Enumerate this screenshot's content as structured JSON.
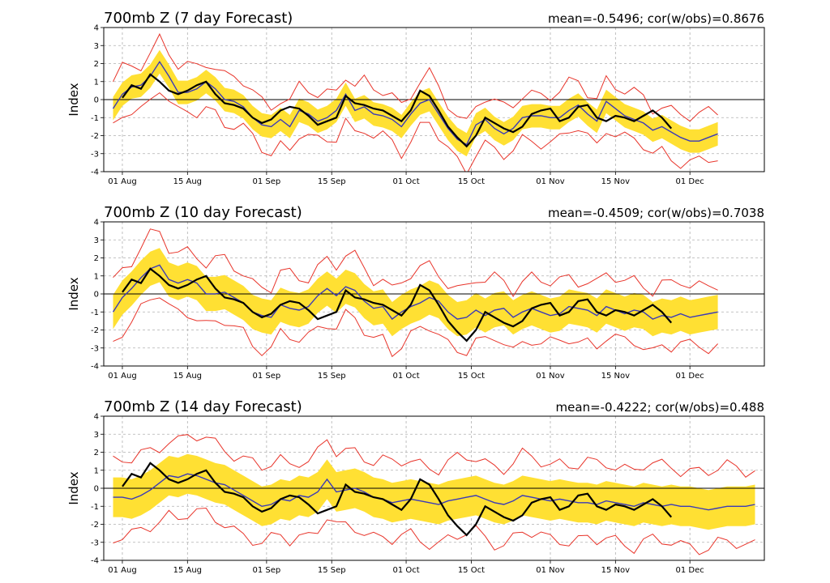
{
  "chart_data": [
    {
      "type": "line",
      "title": "700mb Z (7 day Forecast)",
      "stats": "mean=-0.5496; cor(w/obs)=0.8676",
      "ylabel": "Index",
      "ylim": [
        -4,
        4
      ],
      "yticks": [
        "-4",
        "-3",
        "-2",
        "-1",
        "0",
        "1",
        "2",
        "3",
        "4"
      ],
      "x_range_days": [
        -4,
        138
      ],
      "xticks": [
        {
          "day": 0,
          "label": "01 Aug"
        },
        {
          "day": 14,
          "label": "15 Aug"
        },
        {
          "day": 31,
          "label": "01 Sep"
        },
        {
          "day": 45,
          "label": "15 Sep"
        },
        {
          "day": 61,
          "label": "01 Oct"
        },
        {
          "day": 75,
          "label": "15 Oct"
        },
        {
          "day": 92,
          "label": "01 Nov"
        },
        {
          "day": 106,
          "label": "15 Nov"
        },
        {
          "day": 122,
          "label": "01 Dec"
        }
      ],
      "observed": {
        "x": [
          0,
          2,
          4,
          6,
          8,
          10,
          12,
          14,
          16,
          18,
          20,
          22,
          24,
          26,
          28,
          30,
          32,
          34,
          36,
          38,
          40,
          42,
          44,
          46,
          48,
          50,
          52,
          54,
          56,
          58,
          60,
          62,
          64,
          66,
          68,
          70,
          72,
          74,
          76,
          78,
          80,
          82,
          84,
          86,
          88,
          90,
          92,
          94,
          96,
          98,
          100,
          102,
          104,
          106,
          108,
          110,
          112,
          114,
          116,
          118
        ],
        "y": [
          0.1,
          0.8,
          0.6,
          1.4,
          1.0,
          0.5,
          0.3,
          0.5,
          0.8,
          1.0,
          0.3,
          -0.2,
          -0.3,
          -0.5,
          -1.0,
          -1.3,
          -1.1,
          -0.6,
          -0.4,
          -0.5,
          -0.9,
          -1.4,
          -1.2,
          -1.0,
          0.2,
          -0.2,
          -0.3,
          -0.5,
          -0.6,
          -0.9,
          -1.2,
          -0.6,
          0.5,
          0.2,
          -0.6,
          -1.5,
          -2.1,
          -2.6,
          -2.0,
          -1.0,
          -1.3,
          -1.6,
          -1.8,
          -1.5,
          -0.8,
          -0.6,
          -0.5,
          -1.2,
          -1.0,
          -0.4,
          -0.3,
          -1.0,
          -1.2,
          -0.9,
          -1.0,
          -1.2,
          -0.9,
          -0.6,
          -1.0,
          -1.6
        ]
      },
      "ensemble_mean": {
        "x": [
          -2,
          0,
          2,
          4,
          6,
          8,
          10,
          12,
          14,
          16,
          18,
          20,
          22,
          24,
          26,
          28,
          30,
          32,
          34,
          36,
          38,
          40,
          42,
          44,
          46,
          48,
          50,
          52,
          54,
          56,
          58,
          60,
          62,
          64,
          66,
          68,
          70,
          72,
          74,
          76,
          78,
          80,
          82,
          84,
          86,
          88,
          90,
          92,
          94,
          96,
          98,
          100,
          102,
          104,
          106,
          108,
          110,
          112,
          114,
          116,
          118,
          120,
          122,
          124,
          126,
          128
        ],
        "y": [
          -0.5,
          0.3,
          0.7,
          0.8,
          1.3,
          2.1,
          1.3,
          0.4,
          0.4,
          0.6,
          1.0,
          0.6,
          0.0,
          -0.1,
          -0.4,
          -1.0,
          -1.4,
          -1.5,
          -1.1,
          -1.5,
          -0.6,
          -0.8,
          -1.2,
          -1.0,
          -0.6,
          0.3,
          -0.6,
          -0.4,
          -0.8,
          -0.9,
          -1.1,
          -1.5,
          -0.8,
          -0.2,
          0.0,
          -0.8,
          -1.6,
          -2.2,
          -2.5,
          -1.4,
          -1.1,
          -1.6,
          -1.9,
          -1.6,
          -1.0,
          -0.9,
          -0.9,
          -1.0,
          -1.0,
          -0.6,
          -0.3,
          -0.8,
          -1.2,
          -0.1,
          -0.5,
          -0.9,
          -1.1,
          -1.3,
          -1.7,
          -1.5,
          -1.8,
          -2.1,
          -2.3,
          -2.3,
          -2.1,
          -1.9
        ]
      },
      "band_width": 0.65,
      "envelope_width": 1.3
    },
    {
      "type": "line",
      "title": "700mb Z (10 day Forecast)",
      "stats": "mean=-0.4509; cor(w/obs)=0.7038",
      "ylabel": "Index",
      "ylim": [
        -4,
        4
      ],
      "yticks": [
        "-4",
        "-3",
        "-2",
        "-1",
        "0",
        "1",
        "2",
        "3",
        "4"
      ],
      "x_range_days": [
        -4,
        138
      ],
      "xticks": [
        {
          "day": 0,
          "label": "01 Aug"
        },
        {
          "day": 14,
          "label": "15 Aug"
        },
        {
          "day": 31,
          "label": "01 Sep"
        },
        {
          "day": 45,
          "label": "15 Sep"
        },
        {
          "day": 61,
          "label": "01 Oct"
        },
        {
          "day": 75,
          "label": "15 Oct"
        },
        {
          "day": 92,
          "label": "01 Nov"
        },
        {
          "day": 106,
          "label": "15 Nov"
        },
        {
          "day": 122,
          "label": "01 Dec"
        }
      ],
      "observed": {
        "x": [
          0,
          2,
          4,
          6,
          8,
          10,
          12,
          14,
          16,
          18,
          20,
          22,
          24,
          26,
          28,
          30,
          32,
          34,
          36,
          38,
          40,
          42,
          44,
          46,
          48,
          50,
          52,
          54,
          56,
          58,
          60,
          62,
          64,
          66,
          68,
          70,
          72,
          74,
          76,
          78,
          80,
          82,
          84,
          86,
          88,
          90,
          92,
          94,
          96,
          98,
          100,
          102,
          104,
          106,
          108,
          110,
          112,
          114,
          116,
          118
        ],
        "y": [
          0.1,
          0.8,
          0.6,
          1.4,
          1.0,
          0.5,
          0.3,
          0.5,
          0.8,
          1.0,
          0.3,
          -0.2,
          -0.3,
          -0.5,
          -1.0,
          -1.3,
          -1.1,
          -0.6,
          -0.4,
          -0.5,
          -0.9,
          -1.4,
          -1.2,
          -1.0,
          0.2,
          -0.2,
          -0.3,
          -0.5,
          -0.6,
          -0.9,
          -1.2,
          -0.6,
          0.5,
          0.2,
          -0.6,
          -1.5,
          -2.1,
          -2.6,
          -2.0,
          -1.0,
          -1.3,
          -1.6,
          -1.8,
          -1.5,
          -0.8,
          -0.6,
          -0.5,
          -1.2,
          -1.0,
          -0.4,
          -0.3,
          -1.0,
          -1.2,
          -0.9,
          -1.0,
          -1.2,
          -0.9,
          -0.6,
          -1.0,
          -1.6
        ]
      },
      "ensemble_mean": {
        "x": [
          -2,
          0,
          2,
          4,
          6,
          8,
          10,
          12,
          14,
          16,
          18,
          20,
          22,
          24,
          26,
          28,
          30,
          32,
          34,
          36,
          38,
          40,
          42,
          44,
          46,
          48,
          50,
          52,
          54,
          56,
          58,
          60,
          62,
          64,
          66,
          68,
          70,
          72,
          74,
          76,
          78,
          80,
          82,
          84,
          86,
          88,
          90,
          92,
          94,
          96,
          98,
          100,
          102,
          104,
          106,
          108,
          110,
          112,
          114,
          116,
          118,
          120,
          122,
          124,
          126,
          128
        ],
        "y": [
          -1.0,
          -0.2,
          0.3,
          0.9,
          1.4,
          1.6,
          0.8,
          0.6,
          0.8,
          0.6,
          0.0,
          0.0,
          0.1,
          -0.2,
          -0.5,
          -1.0,
          -1.2,
          -1.3,
          -0.6,
          -0.8,
          -0.9,
          -0.7,
          -0.1,
          0.3,
          -0.1,
          0.4,
          0.2,
          -0.4,
          -0.8,
          -0.7,
          -1.4,
          -1.0,
          -0.7,
          -0.5,
          -0.2,
          -0.4,
          -1.0,
          -1.4,
          -1.3,
          -0.9,
          -1.2,
          -0.9,
          -0.8,
          -1.3,
          -1.0,
          -0.8,
          -1.0,
          -1.2,
          -1.1,
          -0.7,
          -0.8,
          -0.9,
          -1.2,
          -0.7,
          -0.9,
          -1.1,
          -0.9,
          -1.0,
          -1.4,
          -1.2,
          -1.3,
          -1.1,
          -1.3,
          -1.2,
          -1.1,
          -1.0
        ]
      },
      "band_width": 0.95,
      "envelope_width": 1.7
    },
    {
      "type": "line",
      "title": "700mb Z (14 day Forecast)",
      "stats": "mean=-0.4222; cor(w/obs)=0.488",
      "ylabel": "Index",
      "ylim": [
        -4,
        4
      ],
      "yticks": [
        "-4",
        "-3",
        "-2",
        "-1",
        "0",
        "1",
        "2",
        "3",
        "4"
      ],
      "x_range_days": [
        -4,
        138
      ],
      "xticks": [
        {
          "day": 0,
          "label": "01 Aug"
        },
        {
          "day": 14,
          "label": "15 Aug"
        },
        {
          "day": 31,
          "label": "01 Sep"
        },
        {
          "day": 45,
          "label": "15 Sep"
        },
        {
          "day": 61,
          "label": "01 Oct"
        },
        {
          "day": 75,
          "label": "15 Oct"
        },
        {
          "day": 92,
          "label": "01 Nov"
        },
        {
          "day": 106,
          "label": "15 Nov"
        },
        {
          "day": 122,
          "label": "01 Dec"
        }
      ],
      "observed": {
        "x": [
          0,
          2,
          4,
          6,
          8,
          10,
          12,
          14,
          16,
          18,
          20,
          22,
          24,
          26,
          28,
          30,
          32,
          34,
          36,
          38,
          40,
          42,
          44,
          46,
          48,
          50,
          52,
          54,
          56,
          58,
          60,
          62,
          64,
          66,
          68,
          70,
          72,
          74,
          76,
          78,
          80,
          82,
          84,
          86,
          88,
          90,
          92,
          94,
          96,
          98,
          100,
          102,
          104,
          106,
          108,
          110,
          112,
          114,
          116,
          118
        ],
        "y": [
          0.1,
          0.8,
          0.6,
          1.4,
          1.0,
          0.5,
          0.3,
          0.5,
          0.8,
          1.0,
          0.3,
          -0.2,
          -0.3,
          -0.5,
          -1.0,
          -1.3,
          -1.1,
          -0.6,
          -0.4,
          -0.5,
          -0.9,
          -1.4,
          -1.2,
          -1.0,
          0.2,
          -0.2,
          -0.3,
          -0.5,
          -0.6,
          -0.9,
          -1.2,
          -0.6,
          0.5,
          0.2,
          -0.6,
          -1.5,
          -2.1,
          -2.6,
          -2.0,
          -1.0,
          -1.3,
          -1.6,
          -1.8,
          -1.5,
          -0.8,
          -0.6,
          -0.5,
          -1.2,
          -1.0,
          -0.4,
          -0.3,
          -1.0,
          -1.2,
          -0.9,
          -1.0,
          -1.2,
          -0.9,
          -0.6,
          -1.0,
          -1.6
        ]
      },
      "ensemble_mean": {
        "x": [
          -2,
          0,
          2,
          4,
          6,
          8,
          10,
          12,
          14,
          16,
          18,
          20,
          22,
          24,
          26,
          28,
          30,
          32,
          34,
          36,
          38,
          40,
          42,
          44,
          46,
          48,
          50,
          52,
          54,
          56,
          58,
          60,
          62,
          64,
          66,
          68,
          70,
          72,
          74,
          76,
          78,
          80,
          82,
          84,
          86,
          88,
          90,
          92,
          94,
          96,
          98,
          100,
          102,
          104,
          106,
          108,
          110,
          112,
          114,
          116,
          118,
          120,
          122,
          124,
          126,
          128,
          130,
          132,
          134,
          136
        ],
        "y": [
          -0.5,
          -0.5,
          -0.6,
          -0.4,
          -0.1,
          0.3,
          0.7,
          0.6,
          0.8,
          0.7,
          0.5,
          0.3,
          0.2,
          -0.1,
          -0.4,
          -0.7,
          -1.0,
          -0.9,
          -0.6,
          -0.7,
          -0.4,
          -0.5,
          -0.2,
          0.5,
          -0.2,
          -0.1,
          0.0,
          -0.2,
          -0.5,
          -0.6,
          -0.8,
          -0.7,
          -0.6,
          -0.7,
          -0.8,
          -0.9,
          -0.7,
          -0.6,
          -0.5,
          -0.4,
          -0.6,
          -0.8,
          -0.9,
          -0.7,
          -0.4,
          -0.5,
          -0.6,
          -0.7,
          -0.6,
          -0.7,
          -0.8,
          -0.8,
          -0.9,
          -0.7,
          -0.8,
          -0.9,
          -1.0,
          -0.8,
          -0.9,
          -1.0,
          -0.9,
          -1.0,
          -1.0,
          -1.1,
          -1.2,
          -1.1,
          -1.0,
          -1.0,
          -1.0,
          -0.9
        ]
      },
      "band_width": 1.1,
      "envelope_width": 2.1
    }
  ],
  "colors": {
    "band": "#ffe033",
    "envelope": "#e8342a",
    "ensemble_mean": "#3a3ab8",
    "observed": "#000000",
    "grid": "#b0b0b0"
  }
}
